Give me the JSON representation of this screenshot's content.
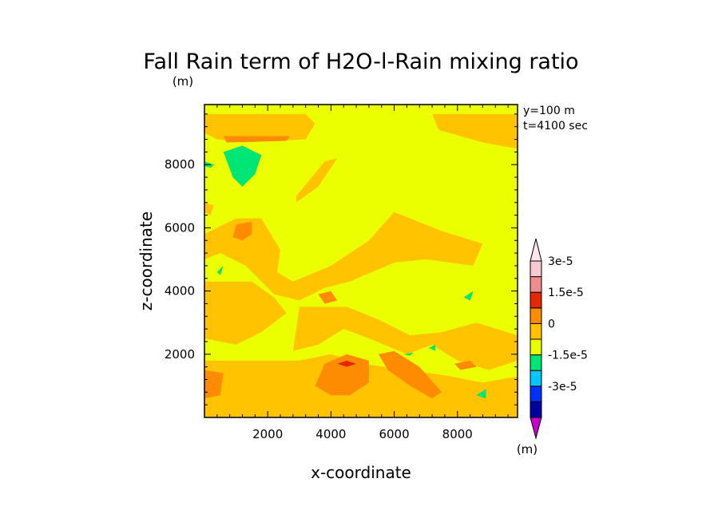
{
  "chart_data": {
    "type": "heatmap",
    "title": "Fall Rain term of H2O-l-Rain mixing ratio",
    "title_units": "(m)",
    "xlabel": "x-coordinate",
    "ylabel": "z-coordinate",
    "xlim": [
      0,
      9900
    ],
    "ylim": [
      0,
      9900
    ],
    "xticks": [
      2000,
      4000,
      6000,
      8000
    ],
    "yticks": [
      2000,
      4000,
      6000,
      8000
    ],
    "xtick_labels": [
      "2000",
      "4000",
      "6000",
      "8000"
    ],
    "ytick_labels": [
      "2000",
      "4000",
      "6000",
      "8000"
    ],
    "annotations": [
      "y=100 m",
      "t=4100 sec"
    ],
    "colorbar": {
      "units": "(m)",
      "labels": [
        "3e-5",
        "1.5e-5",
        "0",
        "-1.5e-5",
        "-3e-5"
      ],
      "colors": [
        "#cc00cc",
        "#0000a0",
        "#0030ff",
        "#00c8ff",
        "#00e676",
        "#ebff00",
        "#ffc300",
        "#ff8c00",
        "#e62800",
        "#f08c8c",
        "#f5c8d2",
        "#fae6eb"
      ]
    },
    "levels_colors": {
      "background": "#ebff00",
      "warm": "#ffc300",
      "orange": "#ff8c00",
      "red": "#e62800",
      "green": "#00e676"
    },
    "regions": [
      {
        "level": "warm",
        "points": [
          [
            0,
            9600
          ],
          [
            3200,
            9600
          ],
          [
            3500,
            9300
          ],
          [
            3200,
            8800
          ],
          [
            1200,
            8700
          ],
          [
            400,
            8800
          ],
          [
            0,
            9000
          ]
        ]
      },
      {
        "level": "warm",
        "points": [
          [
            7200,
            9600
          ],
          [
            9900,
            9600
          ],
          [
            9900,
            8500
          ],
          [
            8800,
            8700
          ],
          [
            7400,
            9100
          ]
        ]
      },
      {
        "level": "orange",
        "points": [
          [
            600,
            8900
          ],
          [
            2700,
            8900
          ],
          [
            2600,
            8750
          ],
          [
            700,
            8700
          ]
        ]
      },
      {
        "level": "warm",
        "points": [
          [
            2900,
            7000
          ],
          [
            3800,
            8100
          ],
          [
            4200,
            8200
          ],
          [
            3600,
            7300
          ],
          [
            2900,
            6800
          ]
        ]
      },
      {
        "level": "warm",
        "points": [
          [
            0,
            6800
          ],
          [
            300,
            6700
          ],
          [
            200,
            6400
          ],
          [
            0,
            6500
          ]
        ]
      },
      {
        "level": "warm",
        "points": [
          [
            0,
            5800
          ],
          [
            1000,
            6300
          ],
          [
            1800,
            6300
          ],
          [
            2400,
            5300
          ],
          [
            2300,
            4600
          ],
          [
            2800,
            4300
          ],
          [
            4000,
            4800
          ],
          [
            5200,
            5600
          ],
          [
            6000,
            6500
          ],
          [
            7500,
            5900
          ],
          [
            8800,
            5500
          ],
          [
            8500,
            4800
          ],
          [
            7000,
            5000
          ],
          [
            6000,
            4900
          ],
          [
            4600,
            4300
          ],
          [
            3800,
            4100
          ],
          [
            3000,
            3700
          ],
          [
            2200,
            3900
          ],
          [
            1300,
            4800
          ],
          [
            500,
            5200
          ],
          [
            0,
            5000
          ]
        ]
      },
      {
        "level": "warm",
        "points": [
          [
            0,
            4300
          ],
          [
            1500,
            4300
          ],
          [
            2200,
            3800
          ],
          [
            2600,
            3300
          ],
          [
            1800,
            2700
          ],
          [
            1000,
            2300
          ],
          [
            0,
            2500
          ]
        ]
      },
      {
        "level": "warm",
        "points": [
          [
            3000,
            3500
          ],
          [
            4500,
            3500
          ],
          [
            5500,
            3100
          ],
          [
            6500,
            2600
          ],
          [
            7500,
            2700
          ],
          [
            8600,
            3000
          ],
          [
            9900,
            2600
          ],
          [
            9900,
            1800
          ],
          [
            9000,
            1500
          ],
          [
            8000,
            1800
          ],
          [
            7200,
            2300
          ],
          [
            6400,
            2000
          ],
          [
            5200,
            2500
          ],
          [
            4400,
            2800
          ],
          [
            3600,
            2300
          ],
          [
            2800,
            2100
          ]
        ]
      },
      {
        "level": "warm",
        "points": [
          [
            0,
            1800
          ],
          [
            3000,
            1800
          ],
          [
            4000,
            2000
          ],
          [
            5000,
            1700
          ],
          [
            6500,
            1500
          ],
          [
            7800,
            1300
          ],
          [
            8800,
            1100
          ],
          [
            9900,
            1300
          ],
          [
            9900,
            0
          ],
          [
            0,
            0
          ]
        ]
      },
      {
        "level": "warm",
        "points": [
          [
            6400,
            5800
          ],
          [
            7200,
            5900
          ],
          [
            7400,
            5400
          ],
          [
            6700,
            5000
          ],
          [
            6300,
            5300
          ]
        ]
      },
      {
        "level": "orange",
        "points": [
          [
            0,
            1500
          ],
          [
            600,
            1400
          ],
          [
            500,
            700
          ],
          [
            0,
            600
          ]
        ]
      },
      {
        "level": "orange",
        "points": [
          [
            3500,
            1000
          ],
          [
            3800,
            1700
          ],
          [
            4500,
            2000
          ],
          [
            5200,
            1800
          ],
          [
            5200,
            1100
          ],
          [
            4600,
            700
          ],
          [
            4000,
            700
          ]
        ]
      },
      {
        "level": "orange",
        "points": [
          [
            5500,
            2000
          ],
          [
            6000,
            2100
          ],
          [
            6800,
            1600
          ],
          [
            7500,
            800
          ],
          [
            7200,
            600
          ],
          [
            6500,
            1000
          ],
          [
            5800,
            1500
          ]
        ]
      },
      {
        "level": "orange",
        "points": [
          [
            3600,
            3900
          ],
          [
            4000,
            4000
          ],
          [
            4200,
            3700
          ],
          [
            3800,
            3600
          ]
        ]
      },
      {
        "level": "orange",
        "points": [
          [
            1000,
            6100
          ],
          [
            1500,
            6200
          ],
          [
            1500,
            5800
          ],
          [
            1200,
            5600
          ],
          [
            900,
            5700
          ]
        ]
      },
      {
        "level": "orange",
        "points": [
          [
            7900,
            1700
          ],
          [
            8400,
            1800
          ],
          [
            8600,
            1600
          ],
          [
            8100,
            1500
          ]
        ]
      },
      {
        "level": "red",
        "points": [
          [
            4200,
            1700
          ],
          [
            4500,
            1800
          ],
          [
            4800,
            1700
          ],
          [
            4500,
            1600
          ]
        ]
      },
      {
        "level": "green",
        "points": [
          [
            600,
            8400
          ],
          [
            1200,
            8600
          ],
          [
            1800,
            8300
          ],
          [
            1600,
            7700
          ],
          [
            1200,
            7300
          ],
          [
            900,
            7600
          ]
        ]
      },
      {
        "level": "green",
        "points": [
          [
            0,
            8100
          ],
          [
            300,
            8000
          ],
          [
            200,
            7900
          ],
          [
            0,
            7950
          ]
        ]
      },
      {
        "level": "green",
        "points": [
          [
            8200,
            3800
          ],
          [
            8500,
            4000
          ],
          [
            8400,
            3700
          ]
        ]
      },
      {
        "level": "green",
        "points": [
          [
            8600,
            700
          ],
          [
            8900,
            900
          ],
          [
            8900,
            600
          ]
        ]
      },
      {
        "level": "green",
        "points": [
          [
            7100,
            2200
          ],
          [
            7300,
            2300
          ],
          [
            7300,
            2100
          ]
        ]
      },
      {
        "level": "green",
        "points": [
          [
            6300,
            2000
          ],
          [
            6600,
            2050
          ],
          [
            6500,
            1950
          ]
        ]
      },
      {
        "level": "green",
        "points": [
          [
            400,
            4600
          ],
          [
            600,
            4800
          ],
          [
            500,
            4500
          ]
        ]
      }
    ]
  }
}
